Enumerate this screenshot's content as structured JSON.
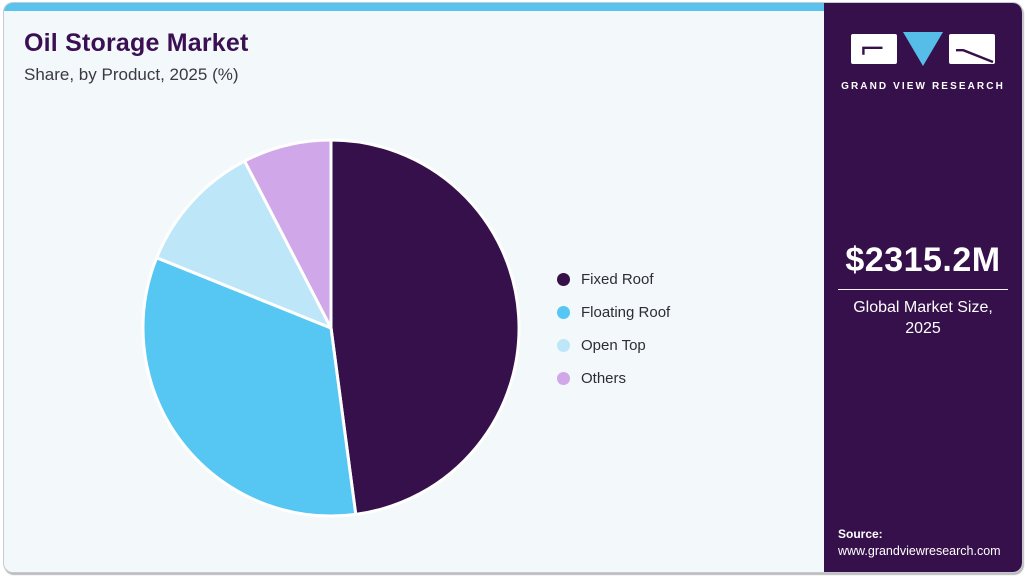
{
  "header": {
    "title": "Oil Storage Market",
    "subtitle": "Share, by Product, 2025 (%)"
  },
  "chart_data": {
    "type": "pie",
    "title": "Oil Storage Market Share, by Product, 2025 (%)",
    "categories": [
      "Fixed Roof",
      "Floating Roof",
      "Open Top",
      "Others"
    ],
    "values": [
      47.9,
      33.2,
      11.3,
      7.6
    ],
    "unit": "%",
    "colors": [
      "#36104A",
      "#56C7F2",
      "#BDE7F8",
      "#D0A7E8"
    ],
    "start_angle_deg": 0,
    "direction": "clockwise",
    "legend_position": "right",
    "slice_gap_color": "#FFFFFF"
  },
  "sidebar": {
    "logo": {
      "brand": "GRAND VIEW RESEARCH"
    },
    "market_size": {
      "value": "$2315.2M",
      "label": "Global Market Size, 2025"
    },
    "source": {
      "label": "Source:",
      "url": "www.grandviewresearch.com"
    }
  },
  "theme": {
    "accent_topbar": "#5BC2EE",
    "panel_background": "#36104A",
    "card_background": "#F3F8FB",
    "title_color": "#3A1053",
    "subtitle_color": "#3A3A42",
    "legend_text_color": "#2D2D36",
    "logo_triangle_blue": "#56BDE8"
  }
}
